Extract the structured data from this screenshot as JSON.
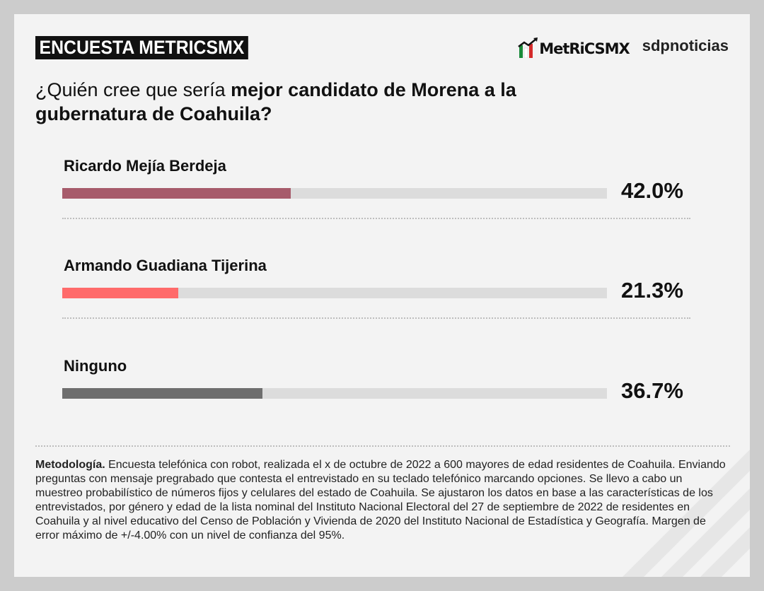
{
  "header": {
    "tag": "ENCUESTA METRICSMX",
    "logo_metrics": "MetRiCSMX",
    "logo_sdp": "sdpnoticias"
  },
  "question": {
    "part1": "¿Quién cree que sería ",
    "part2": "mejor candidato de Morena a la gubernatura de Coahuila?"
  },
  "colors": {
    "accent_1": "#a75b6b",
    "accent_2": "#ff6b6b",
    "accent_3": "#6e6e6e",
    "track": "#dcdcdc"
  },
  "chart_data": {
    "type": "bar",
    "orientation": "horizontal",
    "categories": [
      "Ricardo Mejía Berdeja",
      "Armando Guadiana Tijerina",
      "Ninguno"
    ],
    "values": [
      42.0,
      21.3,
      36.7
    ],
    "value_labels": [
      "42.0%",
      "21.3%",
      "36.7%"
    ],
    "colors": [
      "#a75b6b",
      "#ff6b6b",
      "#6e6e6e"
    ],
    "xlim": [
      0,
      100
    ],
    "title": "¿Quién cree que sería mejor candidato de Morena a la gubernatura de Coahuila?"
  },
  "methodology": {
    "label": "Metodología.",
    "text": " Encuesta telefónica con robot, realizada el x de octubre de 2022 a 600 mayores de edad residentes de Coahuila. Enviando preguntas con mensaje pregrabado que contesta el entrevistado en su teclado telefónico marcando opciones. Se llevo a cabo un muestreo probabilístico de números fijos y celulares del estado de Coahuila. Se ajustaron los datos en base a las características de los entrevistados, por género y edad de la lista nominal del Instituto Nacional Electoral del 27 de septiembre de 2022 de residentes en Coahuila y al nivel educativo del Censo de Población y Vivienda de 2020 del Instituto Nacional de Estadística y Geografía. Margen de error máximo de +/-4.00% con un nivel de confianza del 95%."
  }
}
